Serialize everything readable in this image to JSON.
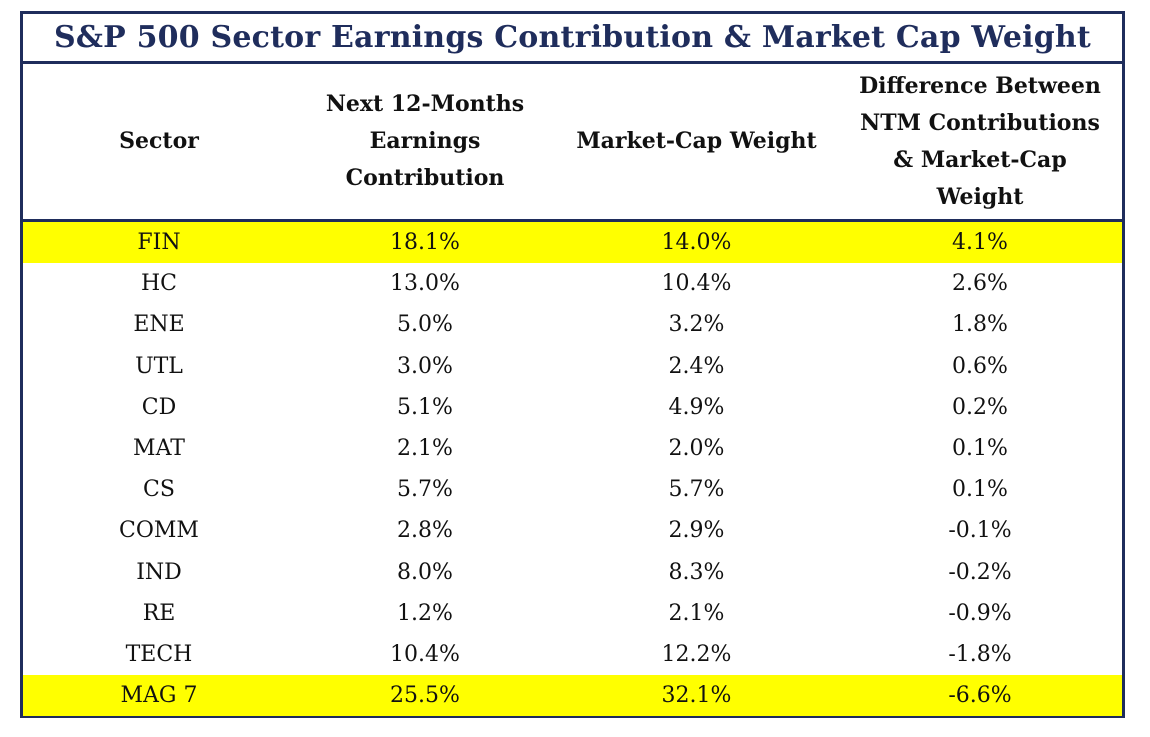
{
  "chart_data": {
    "type": "table",
    "title": "S&P 500 Sector Earnings Contribution & Market Cap Weight",
    "columns": [
      "Sector",
      "Next 12-Months\nEarnings\nContribution",
      "Market-Cap Weight",
      "Difference Between\nNTM Contributions\n& Market-Cap\nWeight"
    ],
    "rows": [
      {
        "sector": "FIN",
        "ntm": "18.1%",
        "weight": "14.0%",
        "diff": "4.1%",
        "highlight": true
      },
      {
        "sector": "HC",
        "ntm": "13.0%",
        "weight": "10.4%",
        "diff": "2.6%",
        "highlight": false
      },
      {
        "sector": "ENE",
        "ntm": "5.0%",
        "weight": "3.2%",
        "diff": "1.8%",
        "highlight": false
      },
      {
        "sector": "UTL",
        "ntm": "3.0%",
        "weight": "2.4%",
        "diff": "0.6%",
        "highlight": false
      },
      {
        "sector": "CD",
        "ntm": "5.1%",
        "weight": "4.9%",
        "diff": "0.2%",
        "highlight": false
      },
      {
        "sector": "MAT",
        "ntm": "2.1%",
        "weight": "2.0%",
        "diff": "0.1%",
        "highlight": false
      },
      {
        "sector": "CS",
        "ntm": "5.7%",
        "weight": "5.7%",
        "diff": "0.1%",
        "highlight": false
      },
      {
        "sector": "COMM",
        "ntm": "2.8%",
        "weight": "2.9%",
        "diff": "-0.1%",
        "highlight": false
      },
      {
        "sector": "IND",
        "ntm": "8.0%",
        "weight": "8.3%",
        "diff": "-0.2%",
        "highlight": false
      },
      {
        "sector": "RE",
        "ntm": "1.2%",
        "weight": "2.1%",
        "diff": "-0.9%",
        "highlight": false
      },
      {
        "sector": "TECH",
        "ntm": "10.4%",
        "weight": "12.2%",
        "diff": "-1.8%",
        "highlight": false
      },
      {
        "sector": "MAG 7",
        "ntm": "25.5%",
        "weight": "32.1%",
        "diff": "-6.6%",
        "highlight": true
      }
    ]
  },
  "colors": {
    "border": "#1f2d5c",
    "title_text": "#1f2d5c",
    "highlight": "#ffff00",
    "body_text": "#111111"
  }
}
